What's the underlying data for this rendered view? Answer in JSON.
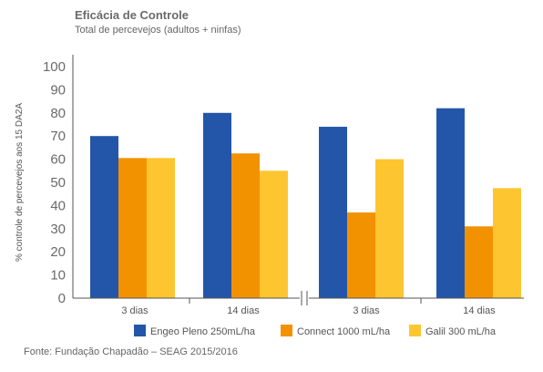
{
  "chart_data": {
    "type": "bar",
    "title": "Eficácia de Controle",
    "subtitle": "Total de percevejos (adultos + ninfas)",
    "ylabel": "% controle de percevejos aos 15 DA2A",
    "xlabel": "",
    "ylim": [
      0,
      100
    ],
    "yticks": [
      0,
      10,
      20,
      30,
      40,
      50,
      60,
      70,
      80,
      90,
      100
    ],
    "categories": [
      "3 dias",
      "14 dias",
      "3 dias",
      "14 dias"
    ],
    "series": [
      {
        "name": "Engeo Pleno 250mL/ha",
        "color": "#2356a8",
        "values": [
          70,
          80,
          74,
          82
        ]
      },
      {
        "name": "Connect 1000 mL/ha",
        "color": "#f39200",
        "values": [
          60.5,
          62.5,
          37,
          31
        ]
      },
      {
        "name": "Galil 300 mL/ha",
        "color": "#fdc530",
        "values": [
          60.5,
          55,
          60,
          47.5
        ]
      }
    ],
    "grid": false,
    "legend_position": "bottom",
    "source": "Fonte: Fundação Chapadão – SEAG 2015/2016"
  }
}
